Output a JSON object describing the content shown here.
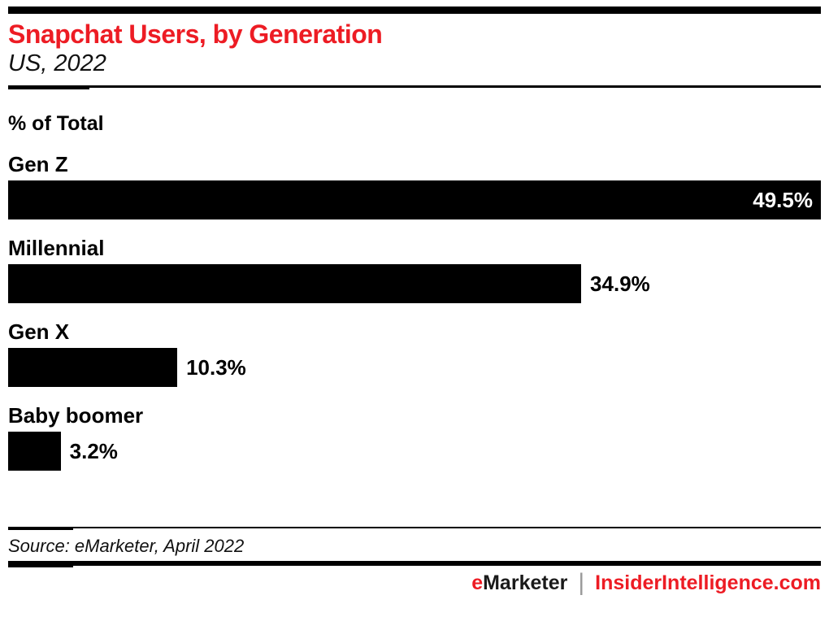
{
  "meta": {
    "title": "Snapchat Users, by Generation",
    "subtitle": "US, 2022",
    "unit_label": "% of Total"
  },
  "chart_data": {
    "type": "bar",
    "orientation": "horizontal",
    "title": "Snapchat Users, by Generation",
    "subtitle": "US, 2022",
    "value_axis_label": "% of Total",
    "categories": [
      "Gen Z",
      "Millennial",
      "Gen X",
      "Baby boomer"
    ],
    "values": [
      49.5,
      34.9,
      10.3,
      3.2
    ],
    "value_suffix": "%",
    "xlim": [
      0,
      49.5
    ],
    "grid": false,
    "legend": false,
    "bar_color": "#000000",
    "max_value_label_inside": true
  },
  "footer": {
    "source": "Source: eMarketer, April 2022",
    "brand_left_accent": "e",
    "brand_left_rest": "Marketer",
    "separator": "|",
    "brand_right": "InsiderIntelligence.com"
  },
  "colors": {
    "accent_red": "#ed1c24",
    "bar_black": "#000000",
    "separator_gray": "#9a9a9a",
    "value_label_inside": "#ffffff"
  }
}
